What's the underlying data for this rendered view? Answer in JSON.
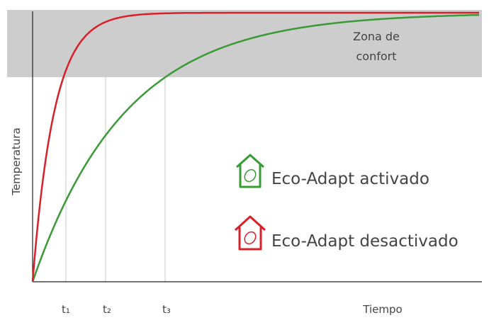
{
  "comfort_zone": {
    "label_lines": [
      "Zona de",
      "confort"
    ]
  },
  "y_axis_label": "Temperatura",
  "x_axis_label": "Tiempo",
  "time_markers": [
    "t₁",
    "t₂",
    "t₃"
  ],
  "legend": [
    "Eco-Adapt activado",
    "Eco-Adapt desactivado"
  ]
}
